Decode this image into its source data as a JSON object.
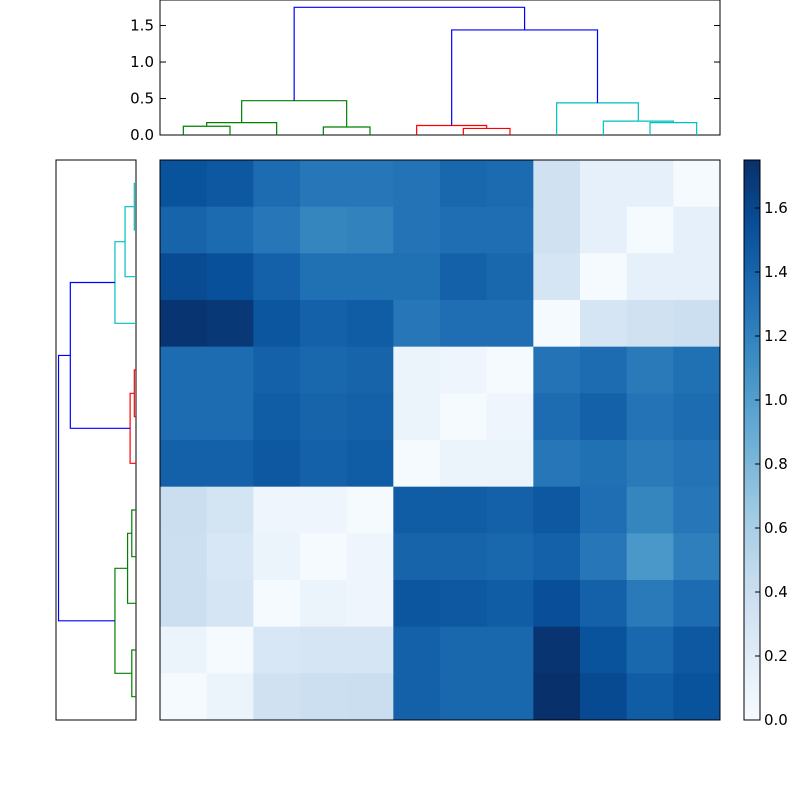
{
  "chart_data": {
    "type": "heatmap",
    "title": "",
    "xlabel": "",
    "ylabel": "",
    "colormap": "Blues",
    "color_low": "#f7fbff",
    "color_high": "#08306b",
    "heatmap": {
      "rows": 12,
      "cols": 12,
      "values": [
        [
          1.52,
          1.48,
          1.35,
          1.28,
          1.28,
          1.3,
          1.38,
          1.36,
          0.35,
          0.15,
          0.15,
          0.02
        ],
        [
          1.4,
          1.36,
          1.28,
          1.18,
          1.2,
          1.3,
          1.33,
          1.33,
          0.35,
          0.15,
          0.02,
          0.15
        ],
        [
          1.57,
          1.54,
          1.42,
          1.32,
          1.32,
          1.32,
          1.42,
          1.38,
          0.3,
          0.02,
          0.15,
          0.15
        ],
        [
          1.72,
          1.7,
          1.5,
          1.42,
          1.45,
          1.27,
          1.33,
          1.33,
          0.02,
          0.3,
          0.35,
          0.38
        ],
        [
          1.35,
          1.35,
          1.42,
          1.38,
          1.4,
          0.1,
          0.08,
          0.02,
          1.3,
          1.35,
          1.25,
          1.32
        ],
        [
          1.35,
          1.35,
          1.45,
          1.4,
          1.42,
          0.1,
          0.02,
          0.08,
          1.35,
          1.42,
          1.3,
          1.35
        ],
        [
          1.42,
          1.42,
          1.48,
          1.42,
          1.45,
          0.02,
          0.1,
          0.1,
          1.28,
          1.32,
          1.25,
          1.3
        ],
        [
          0.4,
          0.32,
          0.08,
          0.08,
          0.02,
          1.45,
          1.45,
          1.42,
          1.48,
          1.33,
          1.18,
          1.28
        ],
        [
          0.38,
          0.28,
          0.1,
          0.02,
          0.08,
          1.4,
          1.4,
          1.38,
          1.42,
          1.28,
          1.05,
          1.22
        ],
        [
          0.38,
          0.3,
          0.02,
          0.1,
          0.08,
          1.5,
          1.48,
          1.45,
          1.55,
          1.42,
          1.25,
          1.35
        ],
        [
          0.1,
          0.02,
          0.28,
          0.3,
          0.3,
          1.42,
          1.38,
          1.38,
          1.72,
          1.52,
          1.38,
          1.48
        ],
        [
          0.02,
          0.1,
          0.35,
          0.38,
          0.4,
          1.42,
          1.38,
          1.38,
          1.75,
          1.58,
          1.45,
          1.52
        ]
      ]
    },
    "colorbar": {
      "range": [
        0.0,
        1.75
      ],
      "ticks": [
        "0.0",
        "0.2",
        "0.4",
        "0.6",
        "0.8",
        "1.0",
        "1.2",
        "1.4",
        "1.6"
      ]
    },
    "top_dendrogram": {
      "ylim": [
        0.0,
        1.85
      ],
      "ticks": [
        "0.0",
        "0.5",
        "1.0",
        "1.5"
      ],
      "links": [
        {
          "l": 0,
          "r": 1,
          "h": 0.12,
          "color": "#008000"
        },
        {
          "l": 3,
          "r": 4,
          "h": 0.11,
          "color": "#008000"
        },
        {
          "l": 2,
          "r": 12,
          "h": 0.17,
          "color": "#008000"
        },
        {
          "l": 13,
          "r": 14,
          "h": 0.47,
          "color": "#008000"
        },
        {
          "l": 6,
          "r": 7,
          "h": 0.09,
          "color": "#ff0000"
        },
        {
          "l": 5,
          "r": 16,
          "h": 0.13,
          "color": "#ff0000"
        },
        {
          "l": 10,
          "r": 11,
          "h": 0.17,
          "color": "#00bfbf"
        },
        {
          "l": 9,
          "r": 18,
          "h": 0.19,
          "color": "#00bfbf"
        },
        {
          "l": 8,
          "r": 19,
          "h": 0.44,
          "color": "#00bfbf"
        },
        {
          "l": 17,
          "r": 20,
          "h": 1.44,
          "color": "#0000ff"
        },
        {
          "l": 15,
          "r": 21,
          "h": 1.75,
          "color": "#0000ff"
        }
      ]
    },
    "left_dendrogram": {
      "links": [
        {
          "l": 0,
          "r": 1,
          "h": 0.02,
          "color": "#00bfbf"
        },
        {
          "l": 12,
          "r": 2,
          "h": 0.13,
          "color": "#00bfbf"
        },
        {
          "l": 13,
          "r": 3,
          "h": 0.25,
          "color": "#00bfbf"
        },
        {
          "l": 4,
          "r": 5,
          "h": 0.02,
          "color": "#ff0000"
        },
        {
          "l": 15,
          "r": 6,
          "h": 0.07,
          "color": "#ff0000"
        },
        {
          "l": 14,
          "r": 16,
          "h": 0.78,
          "color": "#0000ff"
        },
        {
          "l": 7,
          "r": 8,
          "h": 0.05,
          "color": "#008000"
        },
        {
          "l": 18,
          "r": 9,
          "h": 0.1,
          "color": "#008000"
        },
        {
          "l": 10,
          "r": 11,
          "h": 0.05,
          "color": "#008000"
        },
        {
          "l": 19,
          "r": 20,
          "h": 0.25,
          "color": "#008000"
        },
        {
          "l": 17,
          "r": 21,
          "h": 0.92,
          "color": "#0000ff"
        }
      ],
      "hmax": 0.95
    }
  }
}
